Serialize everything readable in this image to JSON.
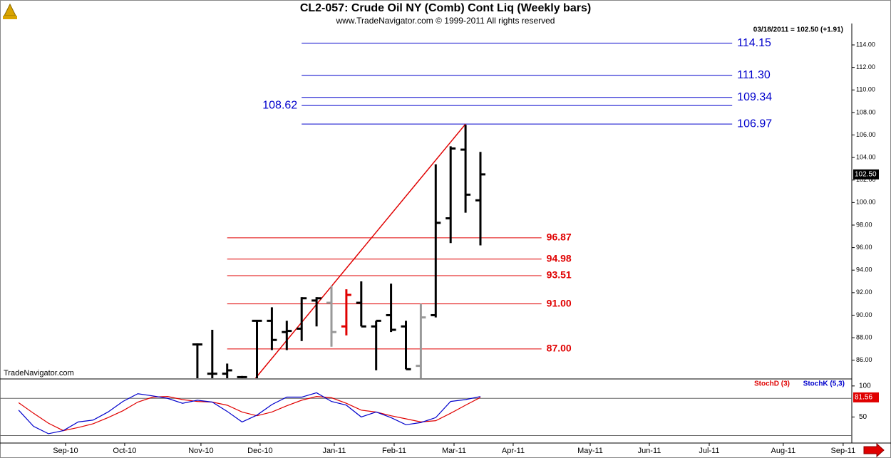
{
  "chart_data": {
    "type": "ohlc",
    "title": "CL2-057:  Crude Oil NY (Comb) Cont Liq  (Weekly bars)",
    "subtitle": "www.TradeNavigator.com © 1999-2011 All rights reserved",
    "quote": "03/18/2011 = 102.50 (+1.91)",
    "watermark": "TradeNavigator.com",
    "xlim": [
      -0.25,
      56.93
    ],
    "xticks": [
      {
        "value": 4.15,
        "label": "Sep-10"
      },
      {
        "value": 8.12,
        "label": "Oct-10"
      },
      {
        "value": 13.24,
        "label": "Nov-10"
      },
      {
        "value": 17.21,
        "label": "Dec-10"
      },
      {
        "value": 22.19,
        "label": "Jan-11"
      },
      {
        "value": 26.21,
        "label": "Feb-11"
      },
      {
        "value": 30.23,
        "label": "Mar-11"
      },
      {
        "value": 34.2,
        "label": "Apr-11"
      },
      {
        "value": 39.37,
        "label": "May-11"
      },
      {
        "value": 43.34,
        "label": "Jun-11"
      },
      {
        "value": 47.36,
        "label": "Jul-11"
      },
      {
        "value": 52.33,
        "label": "Aug-11"
      },
      {
        "value": 56.35,
        "label": "Sep-11"
      }
    ],
    "ylim": [
      84.4,
      115.9
    ],
    "yticks": [
      {
        "value": 86,
        "label": "86.00"
      },
      {
        "value": 88,
        "label": "88.00"
      },
      {
        "value": 90,
        "label": "90.00"
      },
      {
        "value": 92,
        "label": "92.00"
      },
      {
        "value": 94,
        "label": "94.00"
      },
      {
        "value": 96,
        "label": "96.00"
      },
      {
        "value": 98,
        "label": "98.00"
      },
      {
        "value": 100,
        "label": "100.00"
      },
      {
        "value": 102,
        "label": "102.00"
      },
      {
        "value": 104,
        "label": "104.00"
      },
      {
        "value": 106,
        "label": "106.00"
      },
      {
        "value": 108,
        "label": "108.00"
      },
      {
        "value": 110,
        "label": "110.00"
      },
      {
        "value": 112,
        "label": "112.00"
      },
      {
        "value": 114,
        "label": "114.00"
      }
    ],
    "bars": {
      "x": [
        13,
        14,
        15,
        16,
        17,
        18,
        19,
        20,
        21,
        22,
        23,
        24,
        25,
        26,
        27,
        28,
        29,
        30,
        31,
        32
      ],
      "open": [
        87.4,
        84.8,
        84.8,
        84.5,
        89.5,
        89.5,
        88.5,
        88.8,
        91.3,
        91.1,
        89.0,
        91.1,
        89.0,
        90.0,
        89.0,
        85.5,
        90.0,
        98.6,
        104.7,
        100.2
      ],
      "high": [
        87.5,
        88.7,
        85.7,
        84.6,
        89.5,
        90.7,
        89.5,
        91.6,
        91.6,
        92.6,
        92.3,
        93.0,
        89.5,
        92.8,
        89.5,
        91.0,
        103.4,
        105.0,
        106.9,
        104.5
      ],
      "low": [
        84.0,
        84.0,
        84.0,
        83.5,
        84.3,
        86.9,
        86.9,
        87.7,
        89.0,
        87.2,
        88.2,
        89.0,
        85.1,
        88.5,
        85.2,
        84.4,
        89.8,
        96.4,
        99.1,
        96.2
      ],
      "close": [
        87.4,
        84.8,
        85.1,
        84.5,
        89.5,
        87.8,
        88.6,
        91.5,
        91.5,
        88.5,
        91.8,
        89.0,
        89.5,
        88.7,
        85.2,
        89.8,
        98.2,
        104.8,
        100.7,
        102.5
      ],
      "colors": [
        "#000000",
        "#000000",
        "#000000",
        "#000000",
        "#000000",
        "#000000",
        "#000000",
        "#000000",
        "#000000",
        "#999999",
        "#e00000",
        "#000000",
        "#000000",
        "#000000",
        "#000000",
        "#999999",
        "#000000",
        "#000000",
        "#000000",
        "#000000"
      ]
    },
    "last_price": {
      "value": 102.5,
      "label": "102.50"
    },
    "trendline": {
      "x": [
        16.9,
        31
      ],
      "y": [
        84.4,
        106.97
      ],
      "color": "#e00000"
    },
    "level_groups": [
      {
        "color": "#0000cc",
        "x": [
          20,
          48.9
        ],
        "levels": [
          {
            "value": 114.15,
            "label": "114.15",
            "side": "right"
          },
          {
            "value": 111.3,
            "label": "111.30",
            "side": "right"
          },
          {
            "value": 109.34,
            "label": "109.34",
            "side": "right"
          },
          {
            "value": 108.62,
            "label": "108.62",
            "side": "left"
          },
          {
            "value": 106.97,
            "label": "106.97",
            "side": "right"
          }
        ]
      },
      {
        "color": "#e00000",
        "x": [
          15,
          36.1
        ],
        "levels": [
          {
            "value": 96.87,
            "label": "96.87",
            "side": "right"
          },
          {
            "value": 94.98,
            "label": "94.98",
            "side": "right"
          },
          {
            "value": 93.51,
            "label": "93.51",
            "side": "right"
          },
          {
            "value": 91,
            "label": "91.00",
            "side": "right"
          },
          {
            "value": 87,
            "label": "87.00",
            "side": "right"
          }
        ]
      }
    ],
    "indicator": {
      "type": "line",
      "ylim": [
        8,
        109
      ],
      "yticks": [
        50,
        100
      ],
      "levels": [
        80,
        20
      ],
      "x": [
        1,
        2,
        3,
        4,
        5,
        6,
        7,
        8,
        9,
        10,
        11,
        12,
        13,
        14,
        15,
        16,
        17,
        18,
        19,
        20,
        21,
        22,
        23,
        24,
        25,
        26,
        27,
        28,
        29,
        30,
        31,
        32
      ],
      "series": [
        {
          "name": "StochD (3)",
          "color": "#e00000",
          "last_label": "81.56",
          "values": [
            73,
            56,
            40,
            28,
            33,
            39,
            49,
            60,
            74,
            82,
            83,
            78,
            75,
            74,
            69,
            58,
            52,
            58,
            68,
            77,
            83,
            81,
            72,
            61,
            58,
            52,
            47,
            42,
            44,
            56,
            69,
            81.56
          ]
        },
        {
          "name": "StochK (5,3)",
          "color": "#0000cc",
          "values": [
            61,
            35,
            23,
            28,
            42,
            45,
            58,
            75,
            87.5,
            84,
            80,
            72,
            77,
            74,
            59,
            42,
            53,
            70,
            82,
            82,
            89,
            75,
            69,
            50,
            58,
            49,
            37.5,
            41,
            49,
            75,
            78,
            83
          ]
        }
      ]
    }
  }
}
